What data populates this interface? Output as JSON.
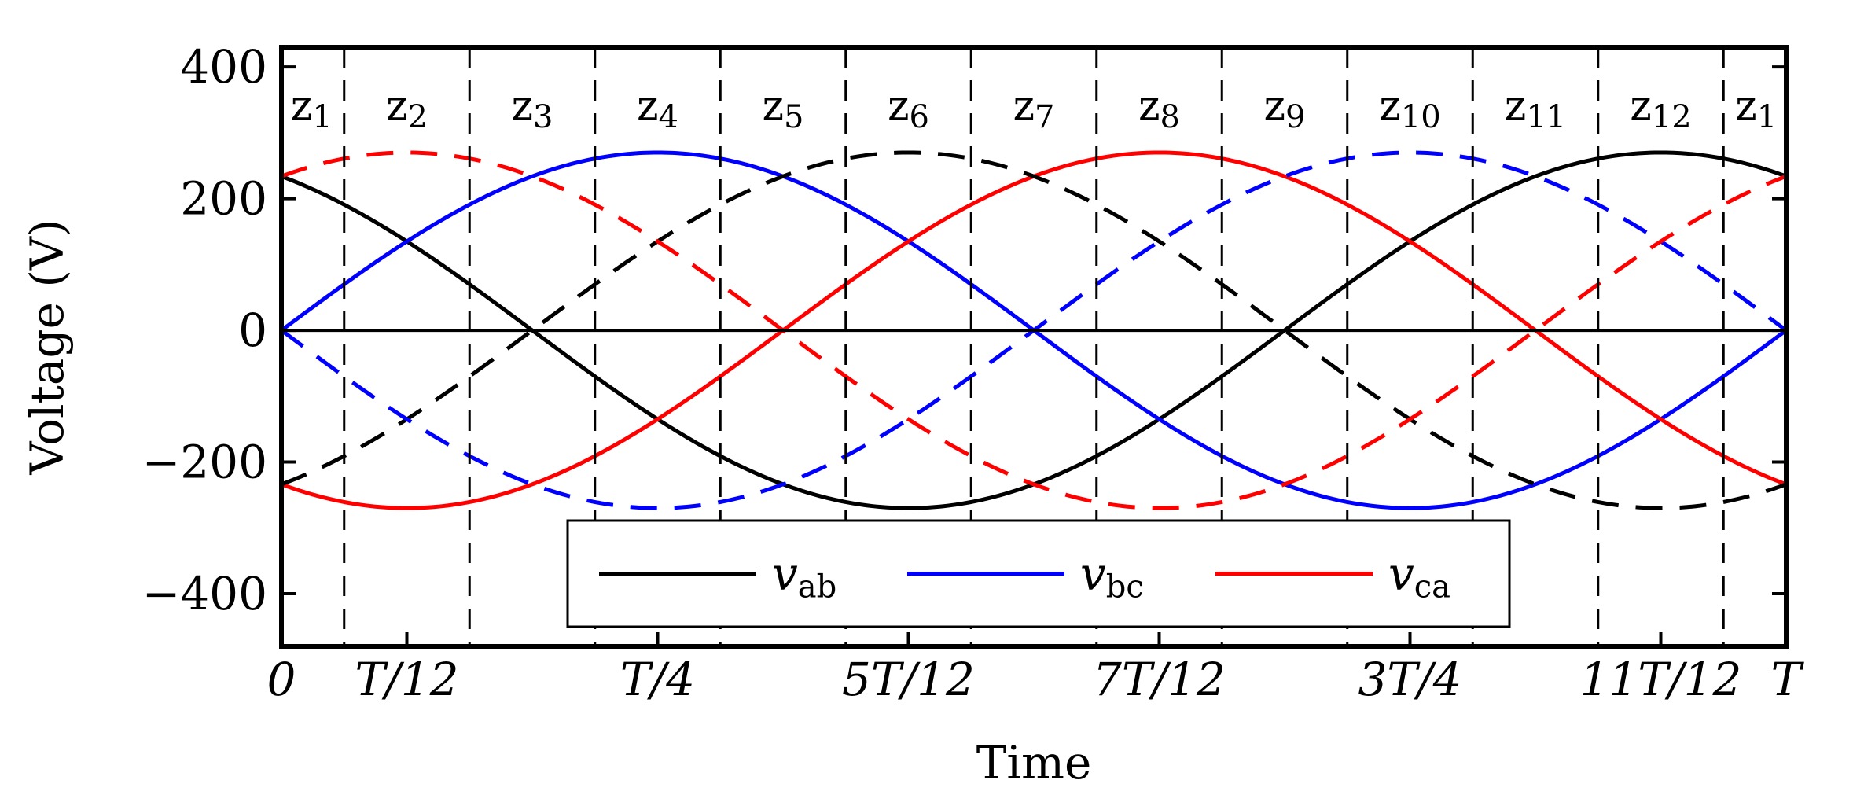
{
  "chart_data": {
    "type": "line",
    "xlabel": "Time",
    "ylabel": "Voltage (V)",
    "x_range_fraction_of_T": [
      0,
      1
    ],
    "ylim": [
      -480,
      430
    ],
    "y_ticks": [
      {
        "value": 400,
        "label": "400"
      },
      {
        "value": 200,
        "label": "200"
      },
      {
        "value": 0,
        "label": "0"
      },
      {
        "value": -200,
        "label": "−200"
      },
      {
        "value": -400,
        "label": "−400"
      }
    ],
    "x_ticks": [
      {
        "value": 0,
        "label": "0"
      },
      {
        "value": 0.0833333,
        "label": "T/12"
      },
      {
        "value": 0.25,
        "label": "T/4"
      },
      {
        "value": 0.4166667,
        "label": "5T/12"
      },
      {
        "value": 0.5833333,
        "label": "7T/12"
      },
      {
        "value": 0.75,
        "label": "3T/4"
      },
      {
        "value": 0.9166667,
        "label": "11T/12"
      },
      {
        "value": 1,
        "label": "T"
      }
    ],
    "amplitude_V": 270,
    "series": [
      {
        "name_base": "v",
        "name_sub": "ab",
        "color": "#000000",
        "style": "solid",
        "phase_deg": 120
      },
      {
        "name_base": "v",
        "name_sub": "bc",
        "color": "#0000ff",
        "style": "solid",
        "phase_deg": 0
      },
      {
        "name_base": "v",
        "name_sub": "ca",
        "color": "#ff0000",
        "style": "solid",
        "phase_deg": 240
      },
      {
        "color": "#000000",
        "style": "dashed",
        "phase_deg": 300
      },
      {
        "color": "#0000ff",
        "style": "dashed",
        "phase_deg": 180
      },
      {
        "color": "#ff0000",
        "style": "dashed",
        "phase_deg": 60
      }
    ],
    "zone_boundaries_fraction_of_T": [
      0.04167,
      0.125,
      0.20833,
      0.29167,
      0.375,
      0.45833,
      0.54167,
      0.625,
      0.70833,
      0.79167,
      0.875,
      0.95833
    ],
    "zones": [
      {
        "base": "z",
        "sub": "1",
        "center": 0.02
      },
      {
        "base": "z",
        "sub": "2",
        "center": 0.0833333
      },
      {
        "base": "z",
        "sub": "3",
        "center": 0.1666667
      },
      {
        "base": "z",
        "sub": "4",
        "center": 0.25
      },
      {
        "base": "z",
        "sub": "5",
        "center": 0.3333333
      },
      {
        "base": "z",
        "sub": "6",
        "center": 0.4166667
      },
      {
        "base": "z",
        "sub": "7",
        "center": 0.5
      },
      {
        "base": "z",
        "sub": "8",
        "center": 0.5833333
      },
      {
        "base": "z",
        "sub": "9",
        "center": 0.6666667
      },
      {
        "base": "z",
        "sub": "10",
        "center": 0.75
      },
      {
        "base": "z",
        "sub": "11",
        "center": 0.8333333
      },
      {
        "base": "z",
        "sub": "12",
        "center": 0.9166667
      },
      {
        "base": "z",
        "sub": "1",
        "center": 0.98
      }
    ],
    "legend_position": "lower-center",
    "grid": false
  }
}
